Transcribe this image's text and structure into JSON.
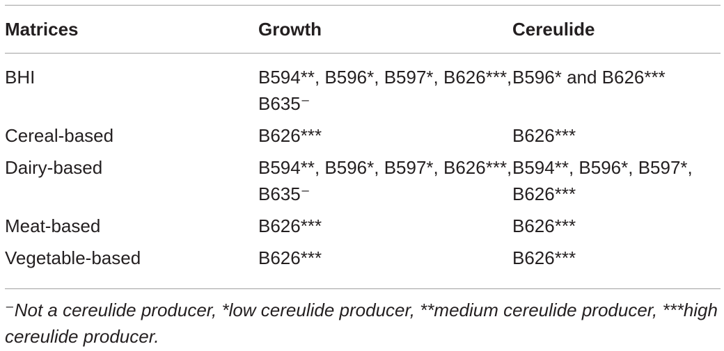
{
  "table": {
    "headers": [
      "Matrices",
      "Growth",
      "Cereulide"
    ],
    "rows": [
      {
        "matrix": "BHI",
        "growth": "B594**, B596*, B597*, B626***, B635⁻",
        "cereulide": "B596* and B626***"
      },
      {
        "matrix": "Cereal-based",
        "growth": "B626***",
        "cereulide": "B626***"
      },
      {
        "matrix": "Dairy-based",
        "growth": "B594**, B596*, B597*, B626***, B635⁻",
        "cereulide": "B594**, B596*, B597*, B626***"
      },
      {
        "matrix": "Meat-based",
        "growth": "B626***",
        "cereulide": "B626***"
      },
      {
        "matrix": "Vegetable-based",
        "growth": "B626***",
        "cereulide": "B626***"
      }
    ]
  },
  "footnote": "⁻Not a cereulide producer, *low cereulide producer, **medium cereulide producer, ***high cereulide producer."
}
